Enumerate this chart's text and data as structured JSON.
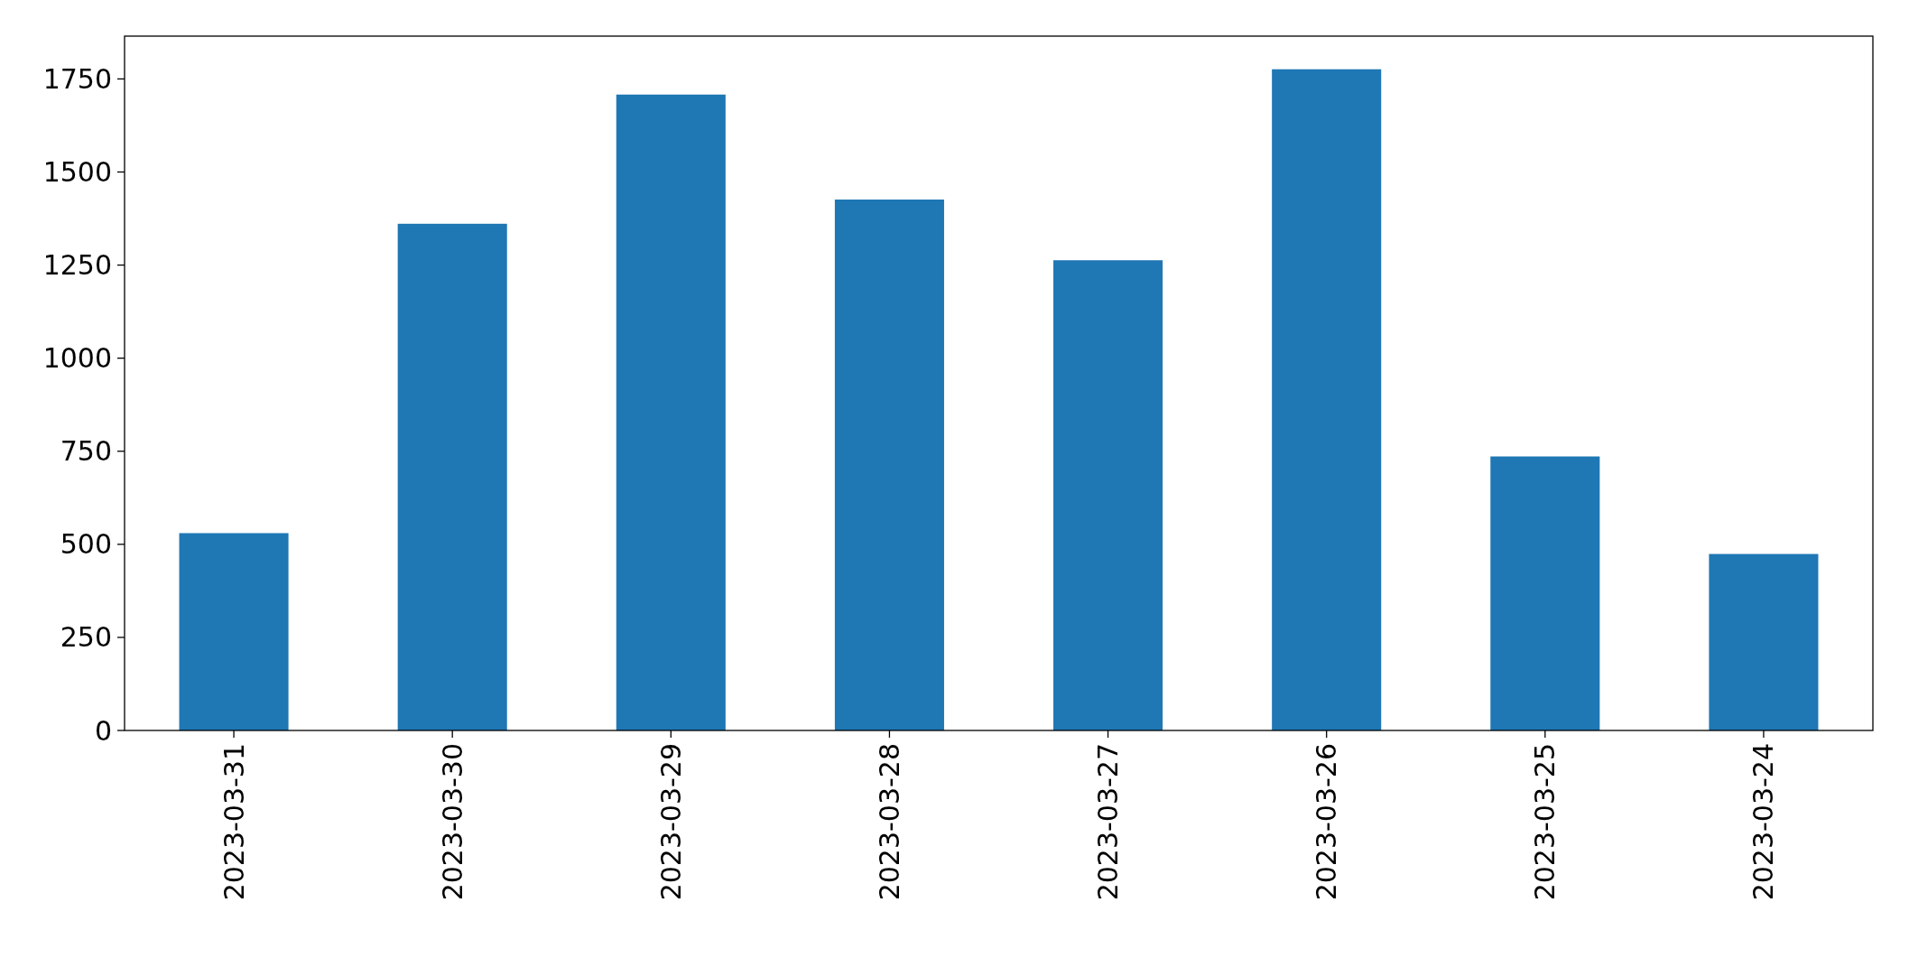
{
  "chart_data": {
    "type": "bar",
    "categories": [
      "2023-03-31",
      "2023-03-30",
      "2023-03-29",
      "2023-03-28",
      "2023-03-27",
      "2023-03-26",
      "2023-03-25",
      "2023-03-24"
    ],
    "values": [
      530,
      1361,
      1708,
      1426,
      1263,
      1776,
      736,
      474
    ],
    "color": "#1f77b4",
    "ylim": [
      0,
      1865
    ],
    "yticks": [
      0,
      250,
      500,
      750,
      1000,
      1250,
      1500,
      1750
    ],
    "grid": false
  }
}
